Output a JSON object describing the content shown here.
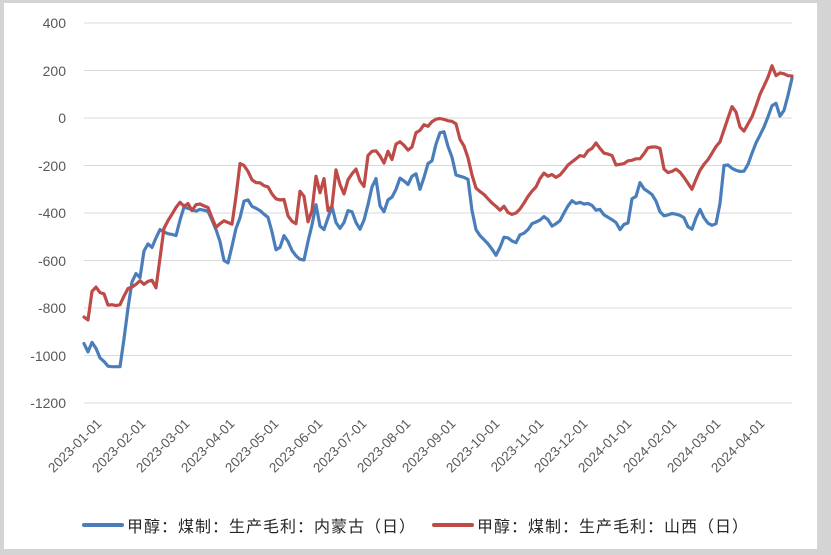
{
  "colors": {
    "page_background": "#d4d4d4",
    "panel_background": "#ffffff",
    "gridline": "#d9d9d9",
    "tick_label": "#595959",
    "legend_text": "#262626",
    "series_blue": "#4A7EBB",
    "series_red": "#BE4B48"
  },
  "chart_data": {
    "type": "line",
    "title": "",
    "grid": "horizontal-only",
    "legend_position": "bottom",
    "x_tick_label_rotation": -45,
    "categories": [
      "2023-01-01",
      "2023-02-01",
      "2023-03-01",
      "2023-04-01",
      "2023-05-01",
      "2023-06-01",
      "2023-07-01",
      "2023-08-01",
      "2023-09-01",
      "2023-10-01",
      "2023-11-01",
      "2023-12-01",
      "2024-01-01",
      "2024-02-01",
      "2024-03-01",
      "2024-04-01"
    ],
    "yaxis": {
      "min": -1200,
      "max": 400,
      "ticks": [
        400,
        200,
        0,
        -200,
        -400,
        -600,
        -800,
        -1000,
        -1200
      ]
    },
    "xaxis_note": "daily data from 2023-01-01 to ~2024-04-28, sampled here every ~2.75 days",
    "x_start_month": -0.14,
    "x_step_month": 0.0905,
    "series": [
      {
        "name": "甲醇：煤制：生产毛利：内蒙古（日）",
        "color": "#4A7EBB",
        "values": [
          -950,
          -985,
          -945,
          -970,
          -1010,
          -1025,
          -1045,
          -1047,
          -1047,
          -1047,
          -930,
          -800,
          -690,
          -655,
          -672,
          -560,
          -530,
          -545,
          -505,
          -470,
          -480,
          -487,
          -490,
          -495,
          -430,
          -375,
          -380,
          -387,
          -392,
          -385,
          -388,
          -393,
          -430,
          -470,
          -520,
          -600,
          -610,
          -540,
          -465,
          -420,
          -350,
          -345,
          -372,
          -380,
          -390,
          -405,
          -418,
          -480,
          -555,
          -545,
          -495,
          -520,
          -558,
          -580,
          -595,
          -598,
          -520,
          -450,
          -365,
          -455,
          -470,
          -420,
          -373,
          -440,
          -465,
          -440,
          -390,
          -395,
          -440,
          -468,
          -430,
          -365,
          -290,
          -255,
          -370,
          -395,
          -345,
          -333,
          -300,
          -253,
          -265,
          -280,
          -245,
          -235,
          -300,
          -250,
          -192,
          -180,
          -110,
          -62,
          -58,
          -120,
          -165,
          -240,
          -245,
          -250,
          -258,
          -390,
          -470,
          -495,
          -512,
          -530,
          -552,
          -578,
          -545,
          -502,
          -505,
          -518,
          -525,
          -492,
          -485,
          -470,
          -445,
          -438,
          -430,
          -415,
          -428,
          -455,
          -445,
          -432,
          -400,
          -370,
          -348,
          -360,
          -355,
          -362,
          -360,
          -368,
          -388,
          -385,
          -408,
          -418,
          -428,
          -440,
          -470,
          -448,
          -442,
          -340,
          -330,
          -272,
          -298,
          -310,
          -322,
          -350,
          -395,
          -412,
          -408,
          -402,
          -405,
          -410,
          -420,
          -458,
          -468,
          -420,
          -385,
          -420,
          -443,
          -452,
          -445,
          -360,
          -200,
          -198,
          -212,
          -220,
          -225,
          -224,
          -195,
          -148,
          -105,
          -72,
          -38,
          5,
          52,
          62,
          8,
          32,
          95,
          168
        ]
      },
      {
        "name": "甲醇：煤制：生产毛利：山西（日）",
        "color": "#BE4B48",
        "values": [
          -838,
          -850,
          -730,
          -712,
          -735,
          -740,
          -788,
          -786,
          -790,
          -786,
          -750,
          -718,
          -712,
          -700,
          -685,
          -700,
          -688,
          -683,
          -715,
          -590,
          -465,
          -432,
          -405,
          -377,
          -355,
          -372,
          -360,
          -390,
          -365,
          -362,
          -370,
          -377,
          -420,
          -460,
          -445,
          -433,
          -440,
          -447,
          -330,
          -192,
          -200,
          -225,
          -260,
          -272,
          -273,
          -285,
          -290,
          -320,
          -340,
          -345,
          -343,
          -412,
          -435,
          -445,
          -308,
          -330,
          -437,
          -390,
          -245,
          -315,
          -255,
          -390,
          -370,
          -218,
          -280,
          -320,
          -260,
          -235,
          -215,
          -265,
          -288,
          -158,
          -140,
          -138,
          -160,
          -190,
          -140,
          -175,
          -110,
          -100,
          -115,
          -135,
          -122,
          -62,
          -52,
          -28,
          -35,
          -15,
          -5,
          -2,
          -6,
          -12,
          -14,
          -25,
          -90,
          -118,
          -168,
          -240,
          -295,
          -310,
          -322,
          -340,
          -358,
          -372,
          -388,
          -372,
          -398,
          -406,
          -400,
          -383,
          -358,
          -330,
          -308,
          -290,
          -255,
          -232,
          -245,
          -238,
          -250,
          -240,
          -220,
          -198,
          -185,
          -172,
          -158,
          -162,
          -138,
          -128,
          -105,
          -128,
          -148,
          -152,
          -158,
          -198,
          -195,
          -192,
          -180,
          -178,
          -172,
          -172,
          -150,
          -125,
          -122,
          -122,
          -128,
          -215,
          -230,
          -225,
          -215,
          -228,
          -250,
          -275,
          -300,
          -258,
          -220,
          -195,
          -175,
          -148,
          -120,
          -100,
          -50,
          0,
          48,
          25,
          -38,
          -55,
          -25,
          5,
          50,
          100,
          135,
          172,
          220,
          178,
          190,
          186,
          178,
          177
        ]
      }
    ]
  }
}
